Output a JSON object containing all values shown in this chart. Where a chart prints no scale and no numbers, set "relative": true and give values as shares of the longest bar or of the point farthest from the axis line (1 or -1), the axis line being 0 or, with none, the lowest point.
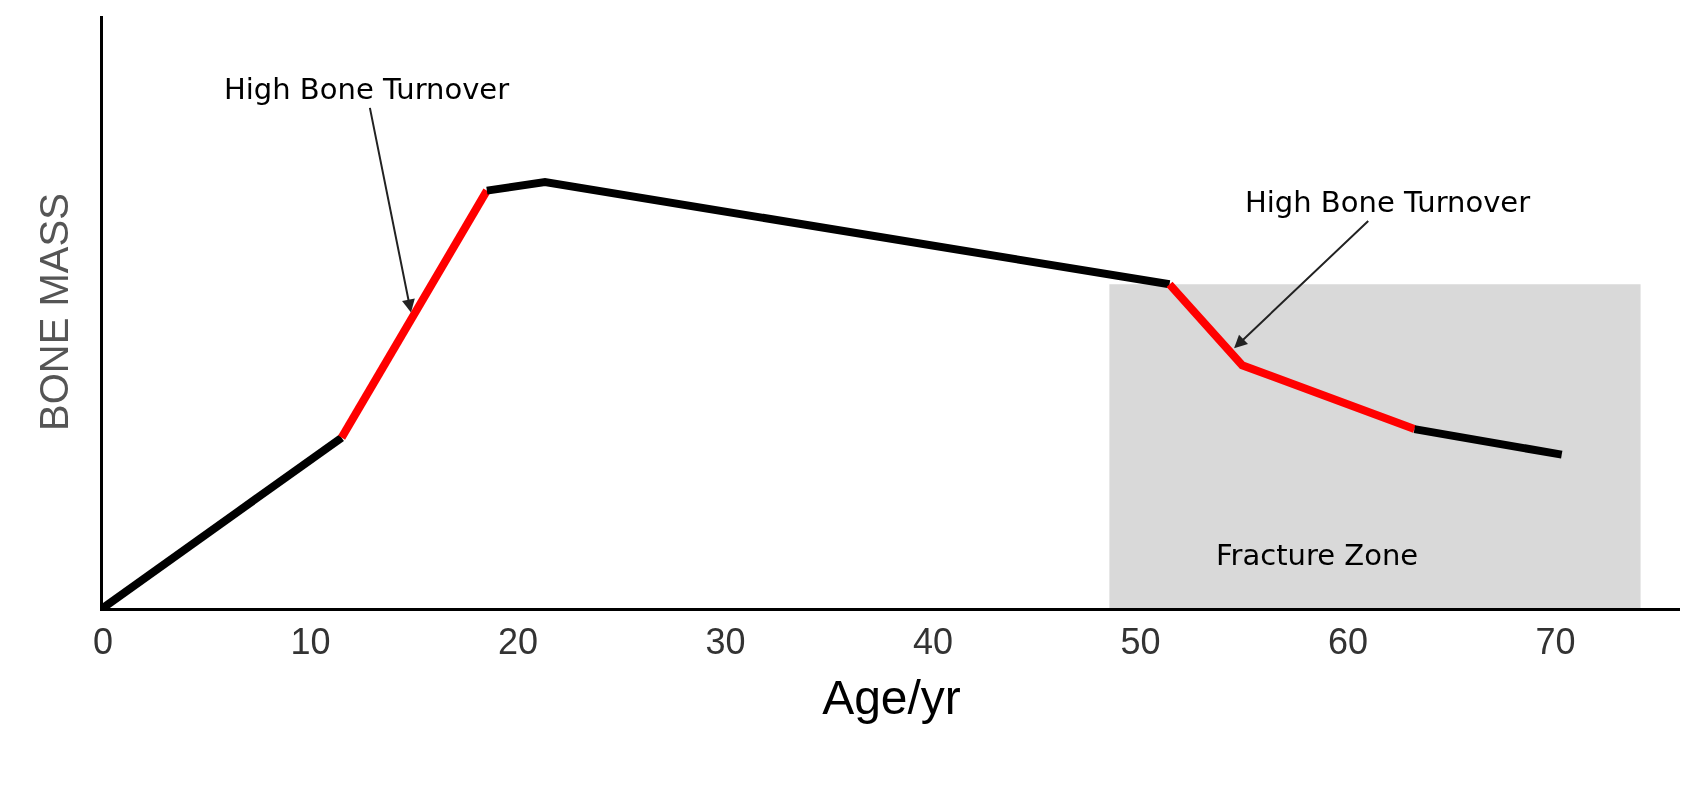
{
  "chart_data": {
    "type": "line",
    "relative": true,
    "xlabel": "Age/yr",
    "ylabel": "BONE MASS",
    "xlim": [
      0,
      76
    ],
    "xticks": [
      0,
      10,
      20,
      30,
      40,
      50,
      60,
      70
    ],
    "grid": false,
    "marker": "none",
    "line_style": "solid",
    "series": [
      {
        "type": "area",
        "color": "#d9d9d9",
        "x": [
          48.5,
          74.1
        ],
        "values": [
          0.76,
          0.76
        ]
      },
      {
        "color": "#000000",
        "x": [
          0,
          11.5
        ],
        "values": [
          0,
          0.4
        ]
      },
      {
        "color": "#ff0000",
        "x": [
          11.5,
          18.5
        ],
        "values": [
          0.4,
          0.98
        ]
      },
      {
        "color": "#000000",
        "x": [
          18.5,
          21.3,
          51.4
        ],
        "values": [
          0.98,
          1,
          0.76
        ]
      },
      {
        "color": "#ff0000",
        "x": [
          51.4,
          54.9,
          63.2
        ],
        "values": [
          0.76,
          0.57,
          0.42
        ]
      },
      {
        "color": "#000000",
        "x": [
          63.2,
          70.3
        ],
        "values": [
          0.42,
          0.36
        ]
      }
    ],
    "annotations": [
      {
        "text": "High Bone Turnover",
        "x": 14.9,
        "y": 0.68
      },
      {
        "text": "High Bone Turnover",
        "x": 54.3,
        "y": 0.6
      },
      "Fracture Zone"
    ]
  }
}
